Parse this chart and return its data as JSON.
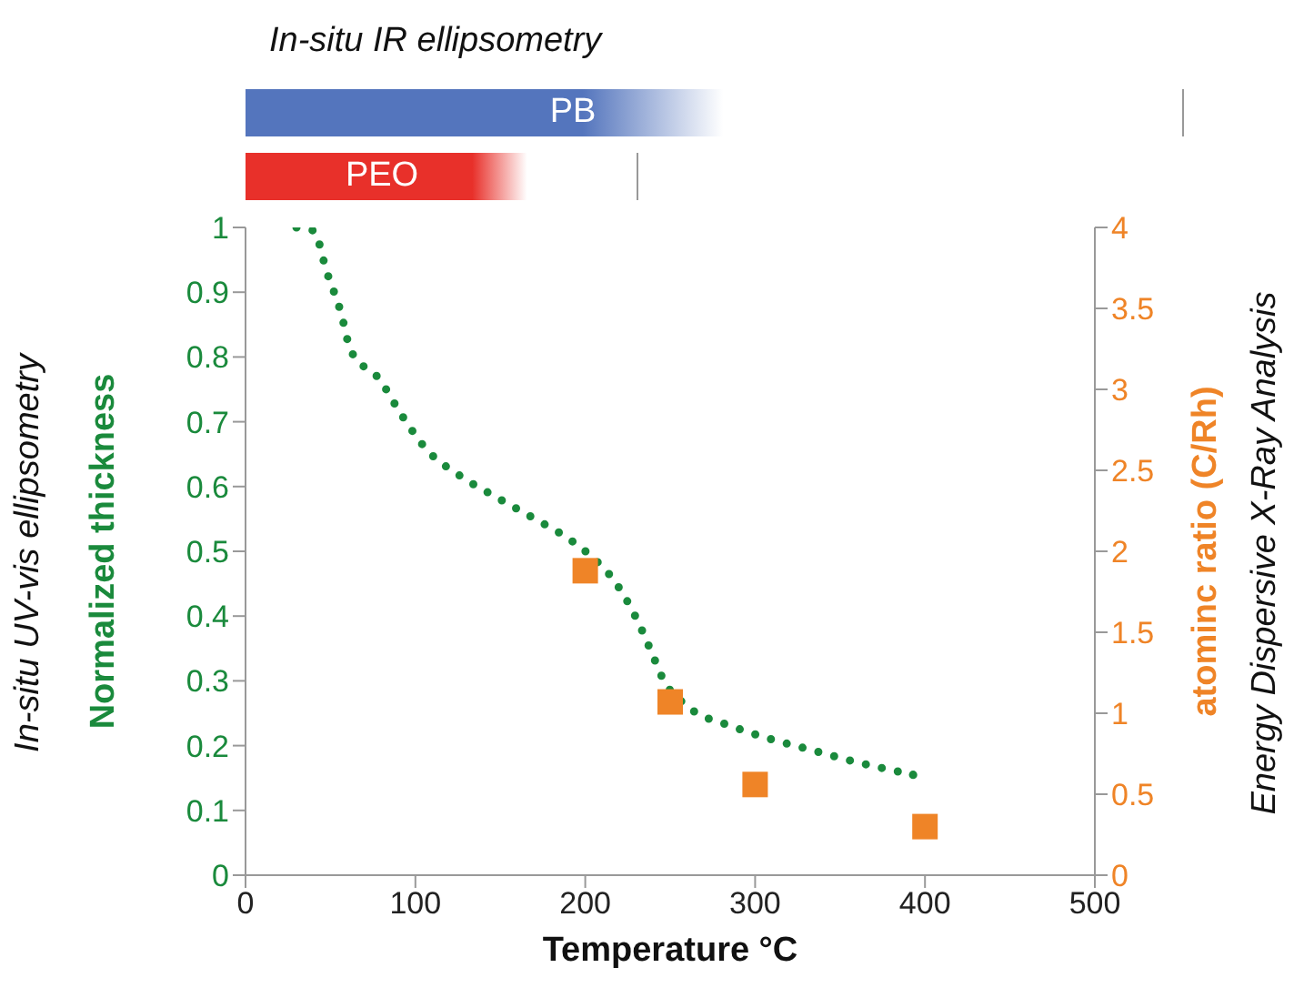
{
  "chart_data": {
    "type": "line",
    "xlabel": "Temperature °C",
    "ylabel": "Normalized thickness",
    "y2label": "atominc ratio (C/Rh)",
    "xlim": [
      0,
      500
    ],
    "xticks": [
      0,
      100,
      200,
      300,
      400,
      500
    ],
    "ylim": [
      0,
      1
    ],
    "yticks": [
      0,
      0.1,
      0.2,
      0.3,
      0.4,
      0.5,
      0.6,
      0.7,
      0.8,
      0.9,
      1
    ],
    "y2lim": [
      0,
      4
    ],
    "y2ticks": [
      0,
      0.5,
      1,
      1.5,
      2,
      2.5,
      3,
      3.5,
      4
    ],
    "series": [
      {
        "color": "#1a8a3c",
        "line_style": "dotted",
        "marker": "none",
        "x": [
          30,
          40,
          48,
          56,
          62,
          79,
          92,
          107,
          126,
          148,
          169,
          191,
          201,
          218,
          230,
          240,
          245,
          261,
          285,
          308,
          332,
          356,
          393
        ],
        "values": [
          1.0,
          0.995,
          0.93,
          0.87,
          0.81,
          0.765,
          0.71,
          0.656,
          0.617,
          0.583,
          0.552,
          0.518,
          0.498,
          0.451,
          0.397,
          0.338,
          0.307,
          0.259,
          0.231,
          0.211,
          0.194,
          0.177,
          0.155
        ]
      },
      {
        "type": "scatter",
        "axis": "y2",
        "color": "#ef8427",
        "marker": "square",
        "x": [
          200,
          250,
          300,
          400
        ],
        "values": [
          1.88,
          1.07,
          0.56,
          0.3
        ]
      }
    ],
    "annotations": [
      "In-situ IR ellipsometry",
      "PB",
      "PEO",
      "In-situ UV-vis ellipsometry",
      "Energy Dispersive X-Ray Analysis"
    ]
  }
}
